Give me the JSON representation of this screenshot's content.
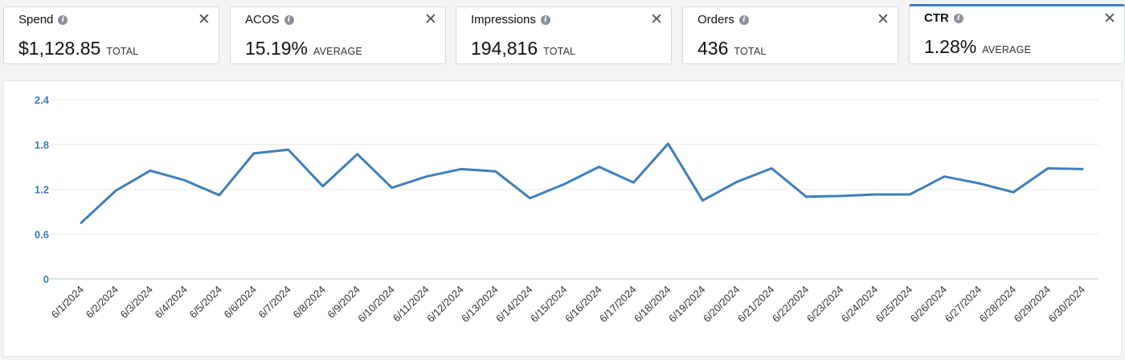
{
  "metrics": [
    {
      "title": "Spend",
      "value": "$1,128.85",
      "agg": "TOTAL"
    },
    {
      "title": "ACOS",
      "value": "15.19%",
      "agg": "AVERAGE"
    },
    {
      "title": "Impressions",
      "value": "194,816",
      "agg": "TOTAL"
    },
    {
      "title": "Orders",
      "value": "436",
      "agg": "TOTAL"
    },
    {
      "title": "CTR",
      "value": "1.28%",
      "agg": "AVERAGE"
    }
  ],
  "icons": {
    "info": "i",
    "close": "✕"
  },
  "colors": {
    "accent": "#3f7fbf",
    "line": "#3e7fbc",
    "tick": "#3e7bbd"
  },
  "chart_data": {
    "type": "line",
    "title": "",
    "xlabel": "",
    "ylabel": "",
    "ylim": [
      0,
      2.4
    ],
    "yticks": [
      "2.4",
      "1.8",
      "1.2",
      "0.6",
      "0"
    ],
    "grid": true,
    "categories": [
      "6/1/2024",
      "6/2/2024",
      "6/3/2024",
      "6/4/2024",
      "6/5/2024",
      "6/6/2024",
      "6/7/2024",
      "6/8/2024",
      "6/9/2024",
      "6/10/2024",
      "6/11/2024",
      "6/12/2024",
      "6/13/2024",
      "6/14/2024",
      "6/15/2024",
      "6/16/2024",
      "6/17/2024",
      "6/18/2024",
      "6/19/2024",
      "6/20/2024",
      "6/21/2024",
      "6/22/2024",
      "6/23/2024",
      "6/24/2024",
      "6/25/2024",
      "6/26/2024",
      "6/27/2024",
      "6/28/2024",
      "6/29/2024",
      "6/30/2024"
    ],
    "series": [
      {
        "values": [
          0.75,
          1.18,
          1.45,
          1.32,
          1.12,
          1.68,
          1.73,
          1.24,
          1.67,
          1.22,
          1.37,
          1.47,
          1.44,
          1.08,
          1.27,
          1.5,
          1.29,
          1.81,
          1.05,
          1.3,
          1.48,
          1.1,
          1.11,
          1.13,
          1.13,
          1.37,
          1.28,
          1.16,
          1.48,
          1.47
        ]
      }
    ]
  }
}
